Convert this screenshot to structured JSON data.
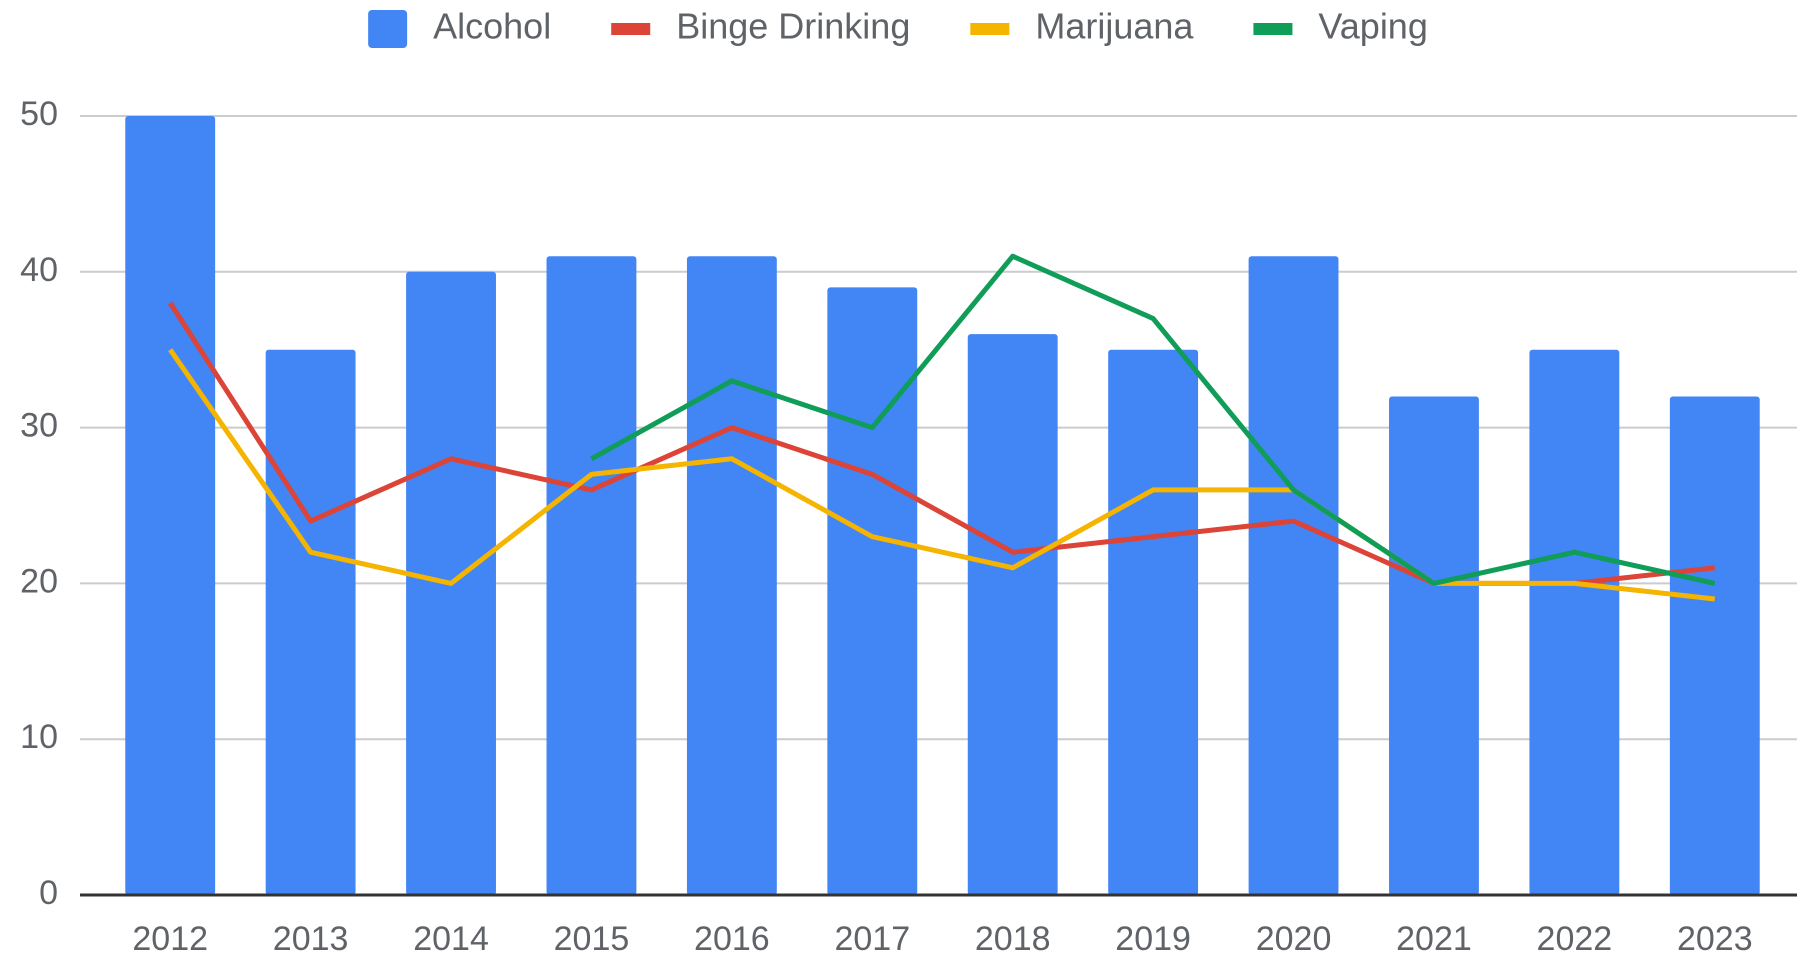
{
  "chart_data": {
    "type": "bar-line",
    "categories": [
      "2012",
      "2013",
      "2014",
      "2015",
      "2016",
      "2017",
      "2018",
      "2019",
      "2020",
      "2021",
      "2022",
      "2023"
    ],
    "series": [
      {
        "name": "Alcohol",
        "type": "bar",
        "color": "#4285f4",
        "values": [
          50,
          35,
          40,
          41,
          41,
          39,
          36,
          35,
          41,
          32,
          35,
          32
        ]
      },
      {
        "name": "Binge Drinking",
        "type": "line",
        "color": "#db4437",
        "values": [
          38,
          24,
          28,
          26,
          30,
          27,
          22,
          23,
          24,
          20,
          20,
          21
        ]
      },
      {
        "name": "Marijuana",
        "type": "line",
        "color": "#f4b400",
        "values": [
          35,
          22,
          20,
          27,
          28,
          23,
          21,
          26,
          26,
          20,
          20,
          19
        ]
      },
      {
        "name": "Vaping",
        "type": "line",
        "color": "#0f9d58",
        "values": [
          null,
          null,
          null,
          28,
          33,
          30,
          41,
          37,
          26,
          20,
          22,
          20
        ]
      }
    ],
    "ylim": [
      0,
      50
    ],
    "yticks": [
      0,
      10,
      20,
      30,
      40,
      50
    ],
    "grid": true,
    "legend": "top"
  }
}
